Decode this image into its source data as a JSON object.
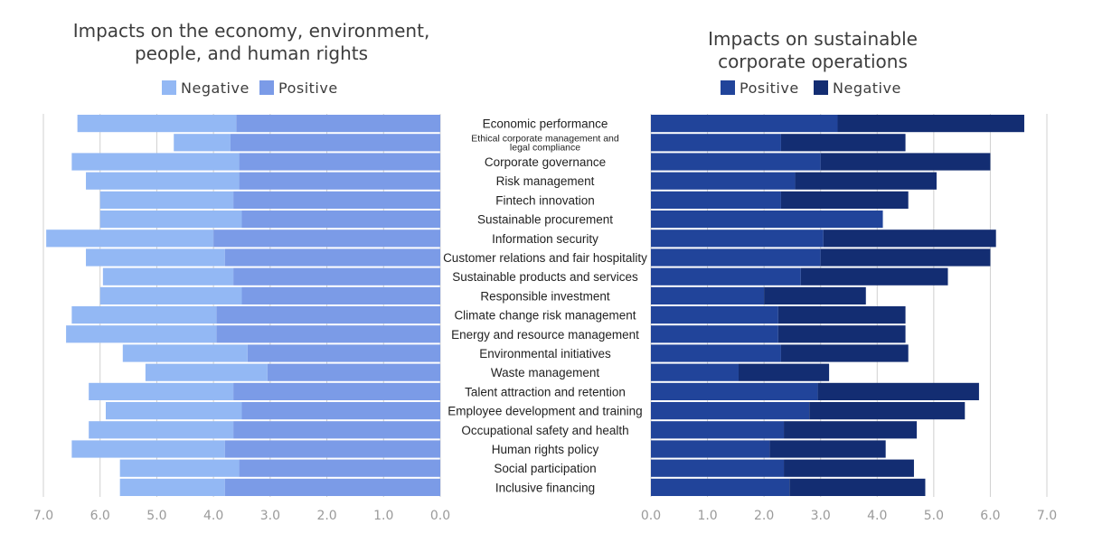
{
  "chart_data": [
    {
      "type": "bar",
      "orientation": "horizontal",
      "stacked": true,
      "x_direction": "reversed",
      "title": "Impacts on the economy, environment, people, and human rights",
      "title_lines": [
        "Impacts on the economy, environment,",
        "people, and human rights"
      ],
      "legend": [
        {
          "name": "Negative",
          "color": "#93b8f4"
        },
        {
          "name": "Positive",
          "color": "#7b9be7"
        }
      ],
      "xlim": [
        0,
        7
      ],
      "xticks": [
        "7.0",
        "6.0",
        "5.0",
        "4.0",
        "3.0",
        "2.0",
        "1.0",
        "0.0"
      ],
      "grid": true,
      "legend_placement": "top-center",
      "categories": [
        "Economic performance",
        "Ethical corporate management and legal compliance",
        "Corporate governance",
        "Risk management",
        "Fintech innovation",
        "Sustainable procurement",
        "Information security",
        "Customer relations and fair hospitality",
        "Sustainable products and services",
        "Responsible investment",
        "Climate change risk management",
        "Energy and resource management",
        "Environmental initiatives",
        "Waste management",
        "Talent attraction and retention",
        "Employee development and training",
        "Occupational safety and health",
        "Human rights policy",
        "Social participation",
        "Inclusive financing"
      ],
      "series": [
        {
          "name": "Positive",
          "color": "#7b9be7",
          "values": [
            3.6,
            3.7,
            3.55,
            3.55,
            3.65,
            3.5,
            4.0,
            3.8,
            3.65,
            3.5,
            3.95,
            3.95,
            3.4,
            3.05,
            3.65,
            3.5,
            3.65,
            3.8,
            3.55,
            3.8
          ]
        },
        {
          "name": "Negative",
          "color": "#93b8f4",
          "values": [
            2.8,
            1.0,
            2.95,
            2.7,
            2.35,
            2.5,
            2.95,
            2.45,
            2.3,
            2.5,
            2.55,
            2.65,
            2.2,
            2.15,
            2.55,
            2.4,
            2.55,
            2.7,
            2.1,
            1.85
          ]
        }
      ]
    },
    {
      "type": "bar",
      "orientation": "horizontal",
      "stacked": true,
      "title": "Impacts on sustainable corporate operations",
      "title_lines": [
        "Impacts on sustainable",
        "corporate operations"
      ],
      "legend": [
        {
          "name": "Positive",
          "color": "#21449a"
        },
        {
          "name": "Negative",
          "color": "#132d72"
        }
      ],
      "xlim": [
        0,
        7
      ],
      "xticks": [
        "0.0",
        "1.0",
        "2.0",
        "3.0",
        "4.0",
        "5.0",
        "6.0",
        "7.0"
      ],
      "grid": true,
      "legend_placement": "top-center",
      "series": [
        {
          "name": "Positive",
          "color": "#21449a",
          "values": [
            3.3,
            2.3,
            3.0,
            2.55,
            2.3,
            4.1,
            3.05,
            3.0,
            2.65,
            2.0,
            2.25,
            2.25,
            2.3,
            1.55,
            2.95,
            2.8,
            2.35,
            2.1,
            2.35,
            2.45
          ]
        },
        {
          "name": "Negative",
          "color": "#132d72",
          "values": [
            3.3,
            2.2,
            3.0,
            2.5,
            2.25,
            0.0,
            3.05,
            3.0,
            2.6,
            1.8,
            2.25,
            2.25,
            2.25,
            1.6,
            2.85,
            2.75,
            2.35,
            2.05,
            2.3,
            2.4
          ]
        }
      ]
    }
  ]
}
